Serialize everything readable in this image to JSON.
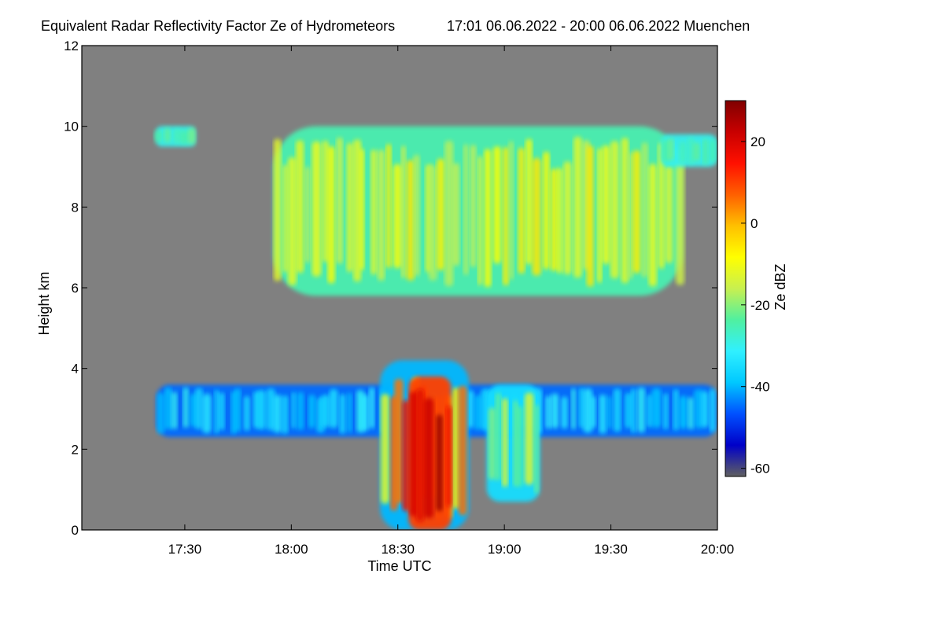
{
  "chart_data": {
    "type": "heatmap",
    "title": "Equivalent Radar Reflectivity Factor Ze of Hydrometeors",
    "subtitle": "17:01 06.06.2022 - 20:00 06.06.2022 Muenchen",
    "xlabel": "Time UTC",
    "ylabel": "Height km",
    "xlim": [
      "17:01",
      "20:00"
    ],
    "ylim": [
      0,
      12
    ],
    "xticks": [
      "17:30",
      "18:00",
      "18:30",
      "19:00",
      "19:30",
      "20:00"
    ],
    "yticks": [
      0,
      2,
      4,
      6,
      8,
      10,
      12
    ],
    "grid": false,
    "background_color": "#808080",
    "colorbar": {
      "label": "Ze dBZ",
      "range": [
        -62,
        30
      ],
      "ticks": [
        20,
        0,
        -20,
        -40,
        -60
      ],
      "colormap": [
        "#606060",
        "#0000c8",
        "#0050ff",
        "#00c8ff",
        "#30f0ff",
        "#50f0a0",
        "#c8f050",
        "#ffff00",
        "#ffc000",
        "#ff6000",
        "#ff1000",
        "#c80000",
        "#800000"
      ]
    },
    "regions": [
      {
        "name": "upper ice cloud (main)",
        "time_start": "17:55",
        "time_end": "19:50",
        "height_bottom": 5.8,
        "height_top": 10.0,
        "ze_range": [
          -25,
          -5
        ]
      },
      {
        "name": "upper cloud fragment (early)",
        "time_start": "17:22",
        "time_end": "17:33",
        "height_bottom": 9.5,
        "height_top": 10.0,
        "ze_range": [
          -30,
          -20
        ]
      },
      {
        "name": "upper cloud fragment (late)",
        "time_start": "19:44",
        "time_end": "20:00",
        "height_bottom": 9.0,
        "height_top": 9.8,
        "ze_range": [
          -30,
          -20
        ]
      },
      {
        "name": "thin mid-level layer",
        "time_start": "17:22",
        "time_end": "20:00",
        "height_bottom": 2.3,
        "height_top": 3.6,
        "ze_range": [
          -45,
          -30
        ]
      },
      {
        "name": "precipitation shaft",
        "time_start": "18:25",
        "time_end": "18:50",
        "height_bottom": 0.0,
        "height_top": 4.2,
        "ze_range": [
          -40,
          25
        ]
      },
      {
        "name": "precipitation core",
        "time_start": "18:33",
        "time_end": "18:45",
        "height_bottom": 0.0,
        "height_top": 3.8,
        "ze_range": [
          10,
          28
        ]
      },
      {
        "name": "secondary shower",
        "time_start": "18:55",
        "time_end": "19:10",
        "height_bottom": 0.7,
        "height_top": 3.6,
        "ze_range": [
          -35,
          -10
        ]
      }
    ]
  }
}
